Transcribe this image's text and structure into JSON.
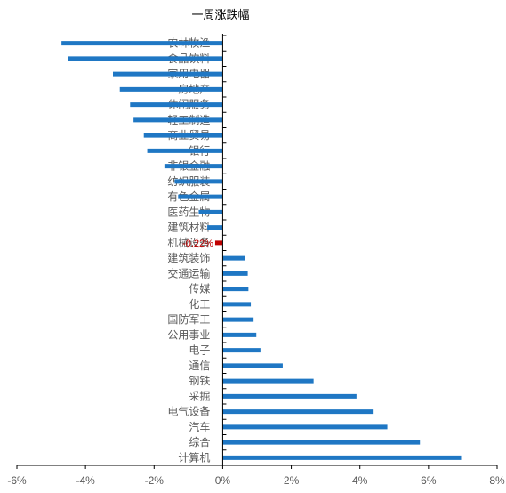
{
  "chart_data": {
    "type": "bar",
    "orientation": "horizontal",
    "title": "一周涨跌幅",
    "categories": [
      "农林牧渔",
      "食品饮料",
      "家用电器",
      "房地产",
      "休闲服务",
      "轻工制造",
      "商业贸易",
      "银行",
      "非银金融",
      "纺织服装",
      "有色金属",
      "医药生物",
      "建筑材料",
      "机械设备",
      "建筑装饰",
      "交通运输",
      "传媒",
      "化工",
      "国防军工",
      "公用事业",
      "电子",
      "通信",
      "钢铁",
      "采掘",
      "电气设备",
      "汽车",
      "综合",
      "计算机"
    ],
    "values": [
      -4.7,
      -4.5,
      -3.2,
      -3.0,
      -2.7,
      -2.6,
      -2.3,
      -2.2,
      -1.7,
      -1.4,
      -1.3,
      -0.7,
      -0.45,
      -0.22,
      0.65,
      0.73,
      0.75,
      0.82,
      0.9,
      0.98,
      1.1,
      1.75,
      2.65,
      3.9,
      4.4,
      4.8,
      5.75,
      6.95
    ],
    "highlight": {
      "category": "机械设备",
      "label": "-0.22%",
      "color": "#c00000"
    },
    "bar_color": "#1f77c4",
    "xlim": [
      -6,
      8
    ],
    "x_ticks": [
      "-6%",
      "-4%",
      "-2%",
      "0%",
      "2%",
      "4%",
      "6%",
      "8%"
    ],
    "grid": false,
    "legend": "none"
  }
}
